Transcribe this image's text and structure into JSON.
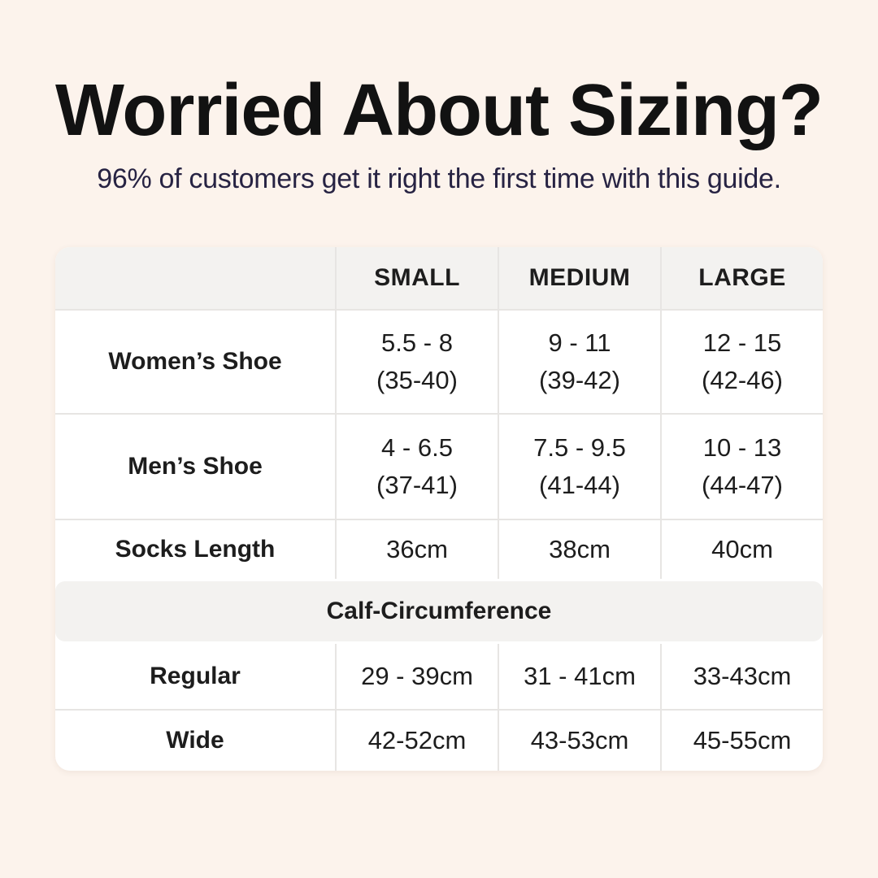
{
  "header": {
    "title": "Worried About Sizing?",
    "subtitle": "96% of customers get it right the first time with this guide."
  },
  "colors": {
    "background": "#fcf3ec",
    "table_bg": "#ffffff",
    "band_bg": "#f3f2f0",
    "divider": "#e7e5e3",
    "text": "#1d1d1d",
    "title_text": "#121212",
    "subtitle_text": "#272343"
  },
  "size_table": {
    "column_headers": [
      "SMALL",
      "MEDIUM",
      "LARGE"
    ],
    "rows": [
      {
        "label": "Women’s Shoe",
        "cells": [
          {
            "line1": "5.5 - 8",
            "line2": "(35-40)"
          },
          {
            "line1": "9 - 11",
            "line2": "(39-42)"
          },
          {
            "line1": "12 - 15",
            "line2": "(42-46)"
          }
        ]
      },
      {
        "label": "Men’s Shoe",
        "cells": [
          {
            "line1": "4 - 6.5",
            "line2": "(37-41)"
          },
          {
            "line1": "7.5 - 9.5",
            "line2": "(41-44)"
          },
          {
            "line1": "10 - 13",
            "line2": "(44-47)"
          }
        ]
      },
      {
        "label": "Socks Length",
        "cells": [
          {
            "line1": "36cm"
          },
          {
            "line1": "38cm"
          },
          {
            "line1": "40cm"
          }
        ]
      }
    ],
    "section_header": "Calf-Circumference",
    "calf_rows": [
      {
        "label": "Regular",
        "cells": [
          {
            "line1": "29 - 39cm"
          },
          {
            "line1": "31 - 41cm"
          },
          {
            "line1": "33-43cm"
          }
        ]
      },
      {
        "label": "Wide",
        "cells": [
          {
            "line1": "42-52cm"
          },
          {
            "line1": "43-53cm"
          },
          {
            "line1": "45-55cm"
          }
        ]
      }
    ]
  }
}
